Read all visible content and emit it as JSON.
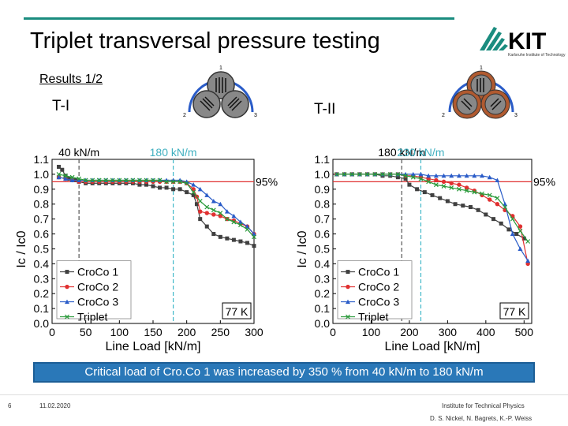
{
  "header": {
    "title": "Triplet transversal pressure testing",
    "subtitle": "Results 1/2",
    "logo_text": "KIT",
    "logo_subtext": "Karlsruhe Institute of Technology"
  },
  "panels": {
    "left_label": "T-I",
    "right_label": "T-II",
    "schematic_numbers": [
      "1",
      "2",
      "3"
    ]
  },
  "colors": {
    "croco1": "#404040",
    "croco2": "#e03030",
    "croco3": "#2a5cc8",
    "triplet": "#2a9a3a",
    "ref95": "#e03030",
    "vline_black": "#555555",
    "vline_cyan": "#40b8c8",
    "banner": "#2a78b8",
    "accent": "#1a8c7f"
  },
  "chart_data": [
    {
      "type": "line",
      "xlabel": "Line Load [kN/m]",
      "ylabel": "Ic / Ic0",
      "xlim": [
        0,
        300
      ],
      "ylim": [
        0,
        1.1
      ],
      "xticks": [
        0,
        50,
        100,
        150,
        200,
        250,
        300
      ],
      "yticks": [
        0.0,
        0.1,
        0.2,
        0.3,
        0.4,
        0.5,
        0.6,
        0.7,
        0.8,
        0.9,
        1.0,
        1.1
      ],
      "hline": {
        "y": 0.95,
        "label": "95%"
      },
      "vlines": [
        {
          "x": 40,
          "label": "40 kN/m",
          "style": "black"
        },
        {
          "x": 180,
          "label": "180 kN/m",
          "style": "cyan"
        }
      ],
      "legend": "lower-left",
      "temp_label": "77 K",
      "series": [
        {
          "name": "CroCo 1",
          "marker": "square",
          "x": [
            10,
            15,
            20,
            25,
            30,
            35,
            40,
            50,
            60,
            70,
            80,
            90,
            100,
            110,
            120,
            130,
            140,
            150,
            160,
            170,
            180,
            190,
            200,
            210,
            215,
            220,
            230,
            240,
            250,
            260,
            270,
            280,
            290,
            300
          ],
          "y": [
            1.05,
            1.03,
            0.99,
            0.97,
            0.96,
            0.96,
            0.95,
            0.94,
            0.94,
            0.94,
            0.94,
            0.94,
            0.94,
            0.94,
            0.94,
            0.93,
            0.93,
            0.92,
            0.91,
            0.91,
            0.9,
            0.9,
            0.88,
            0.86,
            0.8,
            0.7,
            0.65,
            0.6,
            0.58,
            0.57,
            0.56,
            0.55,
            0.54,
            0.52
          ]
        },
        {
          "name": "CroCo 2",
          "marker": "circle",
          "x": [
            10,
            20,
            30,
            40,
            50,
            60,
            70,
            80,
            90,
            100,
            110,
            120,
            130,
            140,
            150,
            160,
            170,
            180,
            190,
            200,
            210,
            215,
            220,
            230,
            240,
            250,
            260,
            270,
            280,
            290,
            300
          ],
          "y": [
            0.98,
            0.97,
            0.96,
            0.95,
            0.95,
            0.95,
            0.95,
            0.95,
            0.95,
            0.95,
            0.95,
            0.95,
            0.95,
            0.95,
            0.95,
            0.95,
            0.95,
            0.95,
            0.95,
            0.94,
            0.9,
            0.85,
            0.75,
            0.74,
            0.73,
            0.72,
            0.7,
            0.69,
            0.67,
            0.65,
            0.6
          ]
        },
        {
          "name": "CroCo 3",
          "marker": "triangle",
          "x": [
            10,
            20,
            30,
            40,
            50,
            60,
            70,
            80,
            90,
            100,
            110,
            120,
            130,
            140,
            150,
            160,
            170,
            180,
            190,
            200,
            210,
            220,
            230,
            240,
            250,
            260,
            270,
            280,
            290,
            300
          ],
          "y": [
            0.98,
            0.97,
            0.96,
            0.96,
            0.96,
            0.96,
            0.96,
            0.96,
            0.96,
            0.96,
            0.96,
            0.96,
            0.96,
            0.96,
            0.96,
            0.96,
            0.96,
            0.96,
            0.96,
            0.95,
            0.93,
            0.9,
            0.86,
            0.82,
            0.8,
            0.75,
            0.72,
            0.68,
            0.65,
            0.6
          ]
        },
        {
          "name": "Triplet",
          "marker": "cross",
          "x": [
            10,
            20,
            30,
            40,
            50,
            60,
            70,
            80,
            90,
            100,
            110,
            120,
            130,
            140,
            150,
            160,
            170,
            180,
            190,
            200,
            210,
            220,
            230,
            240,
            250,
            260,
            270,
            280,
            290,
            300
          ],
          "y": [
            1.0,
            0.99,
            0.98,
            0.97,
            0.96,
            0.96,
            0.96,
            0.96,
            0.96,
            0.96,
            0.96,
            0.96,
            0.96,
            0.96,
            0.96,
            0.96,
            0.95,
            0.95,
            0.95,
            0.94,
            0.88,
            0.82,
            0.78,
            0.76,
            0.74,
            0.7,
            0.68,
            0.66,
            0.63,
            0.58
          ]
        }
      ]
    },
    {
      "type": "line",
      "xlabel": "Line Load [kN/m]",
      "ylabel": "Ic / Ic0",
      "xlim": [
        0,
        520
      ],
      "ylim": [
        0,
        1.1
      ],
      "xticks": [
        0,
        100,
        200,
        300,
        400,
        500
      ],
      "yticks": [
        0.0,
        0.1,
        0.2,
        0.3,
        0.4,
        0.5,
        0.6,
        0.7,
        0.8,
        0.9,
        1.0,
        1.1
      ],
      "hline": {
        "y": 0.95,
        "label": "95%"
      },
      "vlines": [
        {
          "x": 180,
          "label": "180 kN/m",
          "style": "black"
        },
        {
          "x": 230,
          "label": "230 kN/m",
          "style": "cyan"
        }
      ],
      "legend": "lower-left",
      "temp_label": "77 K",
      "series": [
        {
          "name": "CroCo 1",
          "marker": "square",
          "x": [
            10,
            30,
            50,
            70,
            90,
            110,
            130,
            150,
            170,
            190,
            200,
            220,
            240,
            260,
            280,
            300,
            320,
            340,
            360,
            380,
            400,
            420,
            440,
            460,
            480,
            500
          ],
          "y": [
            1.0,
            1.0,
            1.0,
            1.0,
            1.0,
            1.0,
            0.99,
            0.99,
            0.98,
            0.97,
            0.93,
            0.9,
            0.88,
            0.86,
            0.84,
            0.82,
            0.8,
            0.79,
            0.78,
            0.76,
            0.73,
            0.7,
            0.67,
            0.63,
            0.6,
            0.57
          ]
        },
        {
          "name": "CroCo 2",
          "marker": "circle",
          "x": [
            10,
            30,
            50,
            70,
            90,
            110,
            130,
            150,
            170,
            190,
            210,
            230,
            250,
            270,
            290,
            310,
            330,
            350,
            370,
            390,
            410,
            430,
            450,
            470,
            490,
            510
          ],
          "y": [
            1.0,
            1.0,
            1.0,
            1.0,
            1.0,
            1.0,
            1.0,
            1.0,
            1.0,
            0.99,
            0.99,
            0.98,
            0.97,
            0.96,
            0.95,
            0.94,
            0.93,
            0.91,
            0.89,
            0.86,
            0.83,
            0.8,
            0.76,
            0.72,
            0.65,
            0.4
          ]
        },
        {
          "name": "CroCo 3",
          "marker": "triangle",
          "x": [
            10,
            30,
            50,
            70,
            90,
            110,
            130,
            150,
            170,
            190,
            210,
            230,
            250,
            270,
            290,
            310,
            330,
            350,
            370,
            390,
            410,
            430,
            450,
            470,
            490,
            510
          ],
          "y": [
            1.0,
            1.0,
            1.0,
            1.0,
            1.0,
            1.0,
            1.0,
            1.0,
            1.0,
            1.0,
            1.0,
            1.0,
            0.99,
            0.99,
            0.99,
            0.99,
            0.99,
            0.99,
            0.99,
            0.99,
            0.98,
            0.96,
            0.8,
            0.6,
            0.5,
            0.42
          ]
        },
        {
          "name": "Triplet",
          "marker": "cross",
          "x": [
            10,
            30,
            50,
            70,
            90,
            110,
            130,
            150,
            170,
            190,
            210,
            230,
            250,
            270,
            290,
            310,
            330,
            350,
            370,
            390,
            410,
            430,
            450,
            470,
            490,
            510
          ],
          "y": [
            1.0,
            1.0,
            1.0,
            1.0,
            1.0,
            1.0,
            1.0,
            1.0,
            1.0,
            0.99,
            0.98,
            0.97,
            0.95,
            0.93,
            0.92,
            0.91,
            0.9,
            0.89,
            0.88,
            0.87,
            0.86,
            0.84,
            0.78,
            0.7,
            0.62,
            0.55
          ]
        }
      ]
    }
  ],
  "banner": {
    "text": "Critical load of Cro.Co 1 was increased by 350 % from 40 kN/m to 180 kN/m"
  },
  "footer": {
    "slide_number": "6",
    "date": "11.02.2020",
    "institute": "Institute for Technical Physics",
    "authors": "D. S. Nickel, N. Bagrets, K.-P. Weiss"
  }
}
